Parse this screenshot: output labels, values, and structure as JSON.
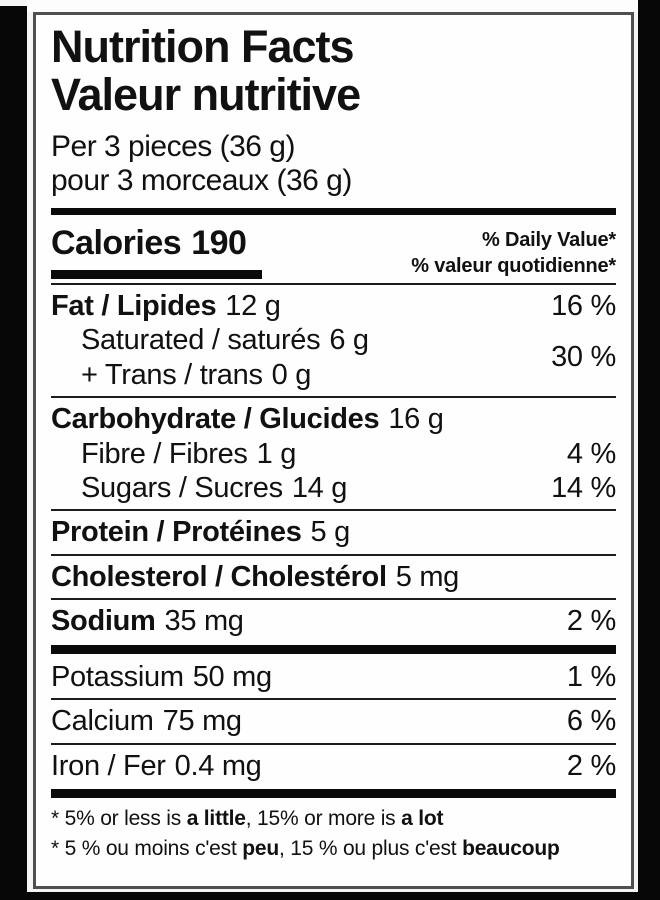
{
  "colors": {
    "text": "#111111",
    "label_background": "#fefefe",
    "photo_background": "#070707",
    "border": "#4f4f4f"
  },
  "label": {
    "title_en": "Nutrition Facts",
    "title_fr": "Valeur nutritive",
    "serving_en": "Per 3 pieces (36 g)",
    "serving_fr": "pour 3 morceaux (36 g)",
    "calories_label": "Calories",
    "calories_value": "190",
    "daily_value_header_en": "% Daily Value*",
    "daily_value_header_fr": "% valeur quotidienne*",
    "nutrients": {
      "fat": {
        "name": "Fat / Lipides",
        "amount": "12 g",
        "dv": "16 %"
      },
      "saturated": {
        "name": "Saturated / saturés",
        "amount": "6 g"
      },
      "trans": {
        "name": "+ Trans / trans",
        "amount": "0 g"
      },
      "saturated_trans_dv": "30 %",
      "carbohydrate": {
        "name": "Carbohydrate / Glucides",
        "amount": "16 g"
      },
      "fibre": {
        "name": "Fibre / Fibres",
        "amount": "1 g",
        "dv": "4 %"
      },
      "sugars": {
        "name": "Sugars / Sucres",
        "amount": "14 g",
        "dv": "14 %"
      },
      "protein": {
        "name": "Protein / Protéines",
        "amount": "5 g"
      },
      "cholesterol": {
        "name": "Cholesterol / Cholestérol",
        "amount": "5 mg"
      },
      "sodium": {
        "name": "Sodium",
        "amount": "35 mg",
        "dv": "2 %"
      },
      "potassium": {
        "name": "Potassium",
        "amount": "50 mg",
        "dv": "1 %"
      },
      "calcium": {
        "name": "Calcium",
        "amount": "75 mg",
        "dv": "6 %"
      },
      "iron": {
        "name": "Iron / Fer",
        "amount": "0.4 mg",
        "dv": "2 %"
      }
    },
    "footnote": {
      "en_prefix": "* 5% or less is ",
      "en_bold1": "a little",
      "en_mid": ", 15% or more is ",
      "en_bold2": "a lot",
      "fr_prefix": "* 5 % ou moins c'est ",
      "fr_bold1": "peu",
      "fr_mid": ", 15 % ou plus c'est ",
      "fr_bold2": "beaucoup"
    }
  }
}
